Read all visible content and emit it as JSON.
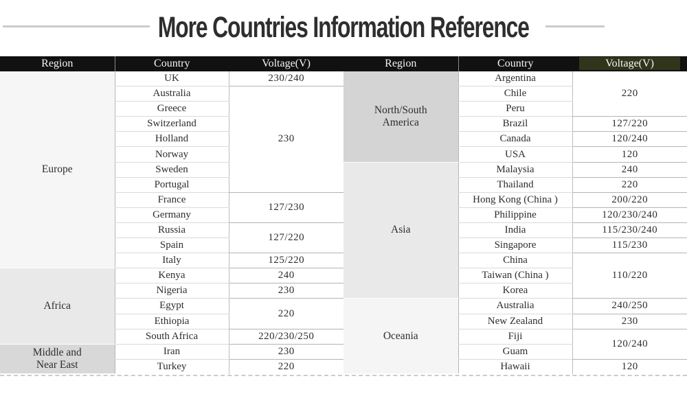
{
  "title": "More Countries Information Reference",
  "colors": {
    "header_bg": "#111111",
    "header_text": "#f5f5f5",
    "highlight_bg": "#31341b",
    "title_text": "#2e2e2e",
    "dash": "#cbcbcb",
    "body_text": "#2d2d2d"
  },
  "tables": [
    {
      "headers": [
        "Region",
        "Country",
        "Voltage(V)"
      ],
      "highlight_col": -1,
      "regions": [
        {
          "name": "Europe",
          "bg": "#f6f6f6",
          "countries": [
            "UK",
            "Australia",
            "Greece",
            "Switzerland",
            "Holland",
            "Norway",
            "Sweden",
            "Portugal",
            "France",
            "Germany",
            "Russia",
            "Spain",
            "Italy"
          ],
          "voltages": [
            {
              "value": "230/240",
              "span": 1
            },
            {
              "value": "230",
              "span": 7
            },
            {
              "value": "127/230",
              "span": 2
            },
            {
              "value": "127/220",
              "span": 2
            },
            {
              "value": "125/220",
              "span": 1
            }
          ]
        },
        {
          "name": "Africa",
          "bg": "#e9e9e9",
          "countries": [
            "Kenya",
            "Nigeria",
            "Egypt",
            "Ethiopia",
            "South Africa"
          ],
          "voltages": [
            {
              "value": "240",
              "span": 1
            },
            {
              "value": "230",
              "span": 1
            },
            {
              "value": "220",
              "span": 2
            },
            {
              "value": "220/230/250",
              "span": 1
            }
          ]
        },
        {
          "name": "Middle and\nNear East",
          "bg": "#d8d8d8",
          "countries": [
            "Iran",
            "Turkey"
          ],
          "voltages": [
            {
              "value": "230",
              "span": 1
            },
            {
              "value": "220",
              "span": 1
            }
          ]
        }
      ]
    },
    {
      "headers": [
        "Region",
        "Country",
        "Voltage(V)"
      ],
      "highlight_col": 2,
      "regions": [
        {
          "name": "North/South\nAmerica",
          "bg": "#d4d4d4",
          "countries": [
            "Argentina",
            "Chile",
            "Peru",
            "Brazil",
            "Canada",
            "USA"
          ],
          "voltages": [
            {
              "value": "220",
              "span": 3
            },
            {
              "value": "127/220",
              "span": 1
            },
            {
              "value": "120/240",
              "span": 1
            },
            {
              "value": "120",
              "span": 1
            }
          ]
        },
        {
          "name": "Asia",
          "bg": "#e9e9e9",
          "countries": [
            "Malaysia",
            "Thailand",
            "Hong Kong (China )",
            "Philippine",
            "India",
            "Singapore",
            "China",
            "Taiwan (China )",
            "Korea"
          ],
          "voltages": [
            {
              "value": "240",
              "span": 1
            },
            {
              "value": "220",
              "span": 1
            },
            {
              "value": "200/220",
              "span": 1
            },
            {
              "value": "120/230/240",
              "span": 1
            },
            {
              "value": "115/230/240",
              "span": 1
            },
            {
              "value": "115/230",
              "span": 1
            },
            {
              "value": "110/220",
              "span": 3
            }
          ]
        },
        {
          "name": "Oceania",
          "bg": "#f5f5f5",
          "countries": [
            "Australia",
            "New Zealand",
            "Fiji",
            "Guam",
            "Hawaii"
          ],
          "voltages": [
            {
              "value": "240/250",
              "span": 1
            },
            {
              "value": "230",
              "span": 1
            },
            {
              "value": "120/240",
              "span": 2
            },
            {
              "value": "120",
              "span": 1
            }
          ]
        }
      ]
    }
  ]
}
